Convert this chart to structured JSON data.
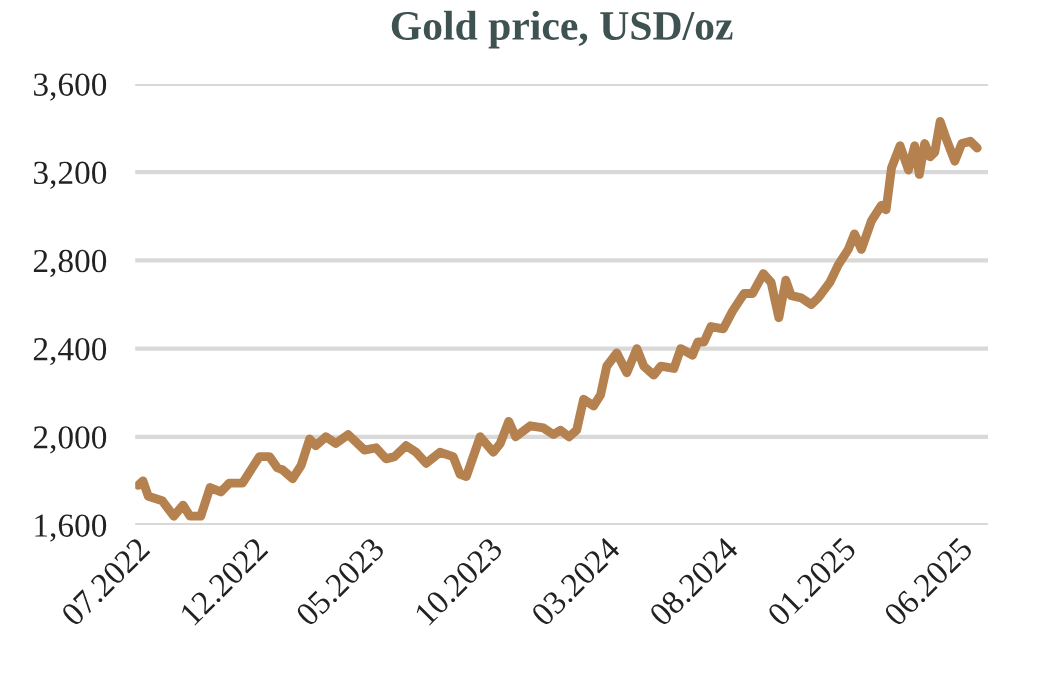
{
  "chart_data": {
    "type": "line",
    "title": "Gold price, USD/oz",
    "x": [
      "2022-07-05",
      "2022-07-11",
      "2022-07-18",
      "2022-08-05",
      "2022-08-20",
      "2022-09-01",
      "2022-09-10",
      "2022-09-24",
      "2022-10-06",
      "2022-10-20",
      "2022-10-31",
      "2022-11-17",
      "2022-12-09",
      "2022-12-22",
      "2023-01-01",
      "2023-01-08",
      "2023-01-21",
      "2023-02-01",
      "2023-02-12",
      "2023-02-20",
      "2023-03-05",
      "2023-03-18",
      "2023-04-03",
      "2023-04-24",
      "2023-05-09",
      "2023-05-22",
      "2023-06-02",
      "2023-06-17",
      "2023-06-30",
      "2023-07-13",
      "2023-07-31",
      "2023-08-17",
      "2023-08-26",
      "2023-09-03",
      "2023-09-21",
      "2023-10-08",
      "2023-10-17",
      "2023-10-28",
      "2023-11-06",
      "2023-11-25",
      "2023-12-12",
      "2023-12-25",
      "2024-01-03",
      "2024-01-14",
      "2024-01-24",
      "2024-02-02",
      "2024-02-15",
      "2024-02-24",
      "2024-03-03",
      "2024-03-16",
      "2024-03-29",
      "2024-04-11",
      "2024-04-20",
      "2024-05-03",
      "2024-05-12",
      "2024-05-29",
      "2024-06-07",
      "2024-06-22",
      "2024-06-29",
      "2024-07-07",
      "2024-07-16",
      "2024-08-01",
      "2024-08-13",
      "2024-08-28",
      "2024-09-08",
      "2024-09-22",
      "2024-10-02",
      "2024-10-12",
      "2024-10-21",
      "2024-10-28",
      "2024-11-10",
      "2024-11-23",
      "2024-12-02",
      "2024-12-17",
      "2024-12-28",
      "2025-01-10",
      "2025-01-18",
      "2025-01-27",
      "2025-02-09",
      "2025-02-22",
      "2025-02-28",
      "2025-03-07",
      "2025-03-18",
      "2025-03-29",
      "2025-04-06",
      "2025-04-12",
      "2025-04-19",
      "2025-04-26",
      "2025-05-02",
      "2025-05-09",
      "2025-05-17",
      "2025-05-28",
      "2025-06-06",
      "2025-06-17",
      "2025-06-26"
    ],
    "series": [
      {
        "color": "#b5814f",
        "values": [
          1780,
          1800,
          1730,
          1710,
          1640,
          1690,
          1640,
          1640,
          1770,
          1750,
          1790,
          1790,
          1910,
          1910,
          1860,
          1850,
          1810,
          1870,
          1990,
          1960,
          2000,
          1970,
          2010,
          1940,
          1950,
          1900,
          1910,
          1960,
          1930,
          1880,
          1930,
          1910,
          1830,
          1820,
          2000,
          1930,
          1970,
          2070,
          2000,
          2050,
          2040,
          2010,
          2030,
          2000,
          2030,
          2170,
          2140,
          2190,
          2320,
          2380,
          2290,
          2400,
          2320,
          2280,
          2320,
          2310,
          2400,
          2370,
          2430,
          2430,
          2500,
          2490,
          2570,
          2650,
          2650,
          2740,
          2700,
          2540,
          2710,
          2640,
          2630,
          2600,
          2630,
          2700,
          2780,
          2850,
          2920,
          2850,
          2980,
          3050,
          3030,
          3220,
          3320,
          3210,
          3320,
          3190,
          3330,
          3270,
          3290,
          3430,
          3350,
          3250,
          3330,
          3340,
          3310
        ]
      }
    ],
    "ylim": [
      1600,
      3600
    ],
    "yticks": [
      {
        "value": 1600,
        "label": "1,600"
      },
      {
        "value": 2000,
        "label": "2,000"
      },
      {
        "value": 2400,
        "label": "2,400"
      },
      {
        "value": 2800,
        "label": "2,800"
      },
      {
        "value": 3200,
        "label": "3,200"
      },
      {
        "value": 3600,
        "label": "3,600"
      }
    ],
    "xlim": [
      "2022-07-01",
      "2025-07-10"
    ],
    "xticks": [
      {
        "value": "2022-07-01",
        "label": "07.2022"
      },
      {
        "value": "2022-12-01",
        "label": "12.2022"
      },
      {
        "value": "2023-05-01",
        "label": "05.2023"
      },
      {
        "value": "2023-10-01",
        "label": "10.2023"
      },
      {
        "value": "2024-03-01",
        "label": "03.2024"
      },
      {
        "value": "2024-08-01",
        "label": "08.2024"
      },
      {
        "value": "2025-01-01",
        "label": "01.2025"
      },
      {
        "value": "2025-06-01",
        "label": "06.2025"
      }
    ],
    "grid": "y",
    "legend": false,
    "marker": "none",
    "line_style": "solid"
  }
}
